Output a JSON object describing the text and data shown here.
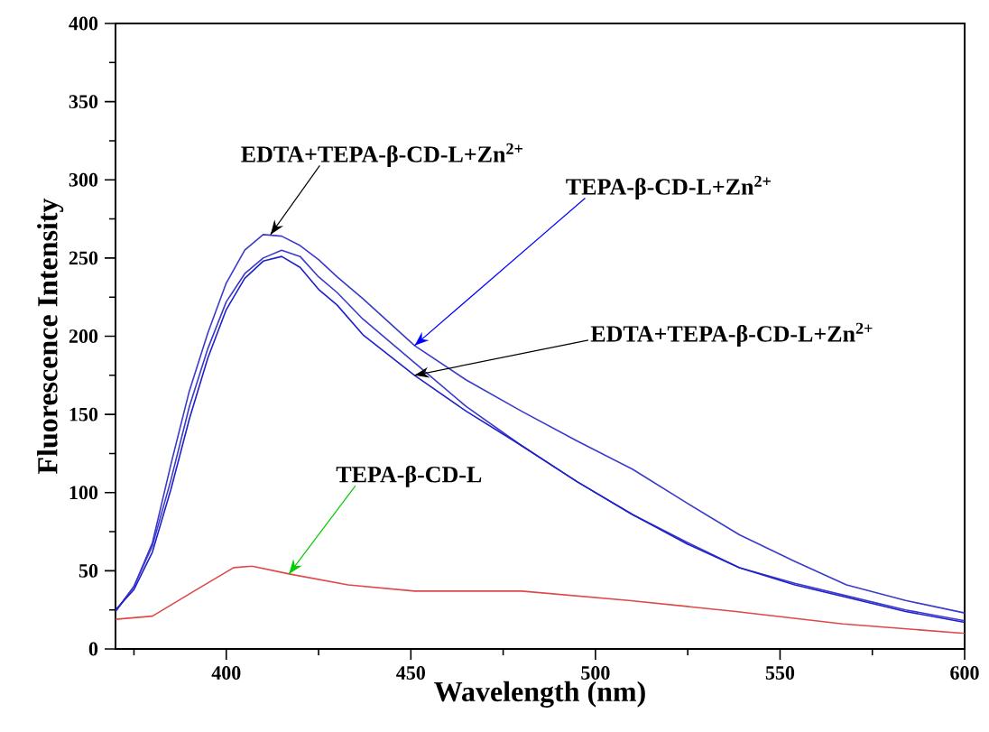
{
  "chart_data": {
    "type": "line",
    "xlabel": "Wavelength (nm)",
    "ylabel": "Fluorescence Intensity",
    "x": [
      370,
      375,
      380,
      385,
      390,
      395,
      400,
      405,
      410,
      415,
      420,
      425,
      430,
      437,
      451,
      465,
      480,
      495,
      510,
      525,
      539,
      554,
      568,
      584,
      600
    ],
    "series": [
      {
        "color": "#3a3acc",
        "values": [
          24,
          40,
          68,
          118,
          165,
          202,
          234,
          255,
          265,
          264,
          258,
          249,
          238,
          224,
          194,
          172,
          152,
          133,
          115,
          93,
          73,
          56,
          41,
          31,
          23
        ]
      },
      {
        "color": "#3a3acc",
        "values": [
          24,
          40,
          66,
          108,
          155,
          192,
          222,
          240,
          250,
          255,
          251,
          238,
          228,
          211,
          183,
          155,
          130,
          107,
          86,
          68,
          52,
          42,
          34,
          25,
          18
        ]
      },
      {
        "color": "#1f1fcc",
        "values": [
          25,
          38,
          62,
          102,
          147,
          186,
          217,
          237,
          248,
          251,
          244,
          230,
          220,
          201,
          175,
          152,
          130,
          107,
          86,
          67,
          52,
          41,
          33,
          24,
          17
        ]
      },
      {
        "color": "#e04848",
        "x": [
          370,
          380,
          392,
          402,
          407,
          417,
          433,
          451,
          480,
          509,
          538,
          567,
          600
        ],
        "values": [
          19,
          21,
          38,
          52,
          53,
          48,
          41,
          37,
          37,
          31,
          24,
          16,
          10
        ]
      }
    ],
    "xlim": [
      370,
      600
    ],
    "ylim": [
      0,
      400
    ],
    "xticks": [
      {
        "value": 375,
        "label": null
      },
      400,
      {
        "value": 425,
        "label": null
      },
      450,
      {
        "value": 475,
        "label": null
      },
      500,
      {
        "value": 525,
        "label": null
      },
      550,
      {
        "value": 575,
        "label": null
      },
      600
    ],
    "yticks": [
      0,
      {
        "value": 25,
        "label": null
      },
      50,
      {
        "value": 75,
        "label": null
      },
      100,
      {
        "value": 125,
        "label": null
      },
      150,
      {
        "value": 175,
        "label": null
      },
      200,
      {
        "value": 225,
        "label": null
      },
      250,
      {
        "value": 275,
        "label": null
      },
      300,
      {
        "value": 325,
        "label": null
      },
      350,
      {
        "value": 375,
        "label": null
      },
      400
    ],
    "annotations": [
      {
        "text": "EDTA+TEPA-β-CD-L+Zn$^{2+}$",
        "x": 412,
        "y": 265
      },
      {
        "text": "TEPA-β-CD-L+Zn$^{2+}$",
        "x": 451,
        "y": 194
      },
      {
        "text": "EDTA+TEPA-β-CD-L+Zn$^{2+}$",
        "x": 451,
        "y": 175
      },
      {
        "text": "TEPA-β-CD-L",
        "x": 417,
        "y": 48
      }
    ],
    "grid": false,
    "marker": "none",
    "line_style": "solid"
  }
}
